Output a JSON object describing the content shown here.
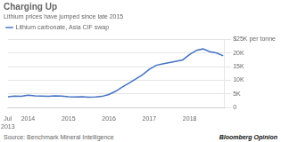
{
  "chart_data": {
    "type": "line",
    "title": "Charging Up",
    "subtitle": "Lithium prices have jumped since late 2015",
    "x": [
      2013.5,
      2013.67,
      2013.83,
      2014.0,
      2014.17,
      2014.33,
      2014.5,
      2014.67,
      2014.83,
      2015.0,
      2015.17,
      2015.33,
      2015.5,
      2015.67,
      2015.83,
      2016.0,
      2016.17,
      2016.33,
      2016.5,
      2016.67,
      2016.83,
      2017.0,
      2017.17,
      2017.33,
      2017.5,
      2017.67,
      2017.83,
      2018.0,
      2018.17,
      2018.33,
      2018.5,
      2018.67,
      2018.83
    ],
    "series": [
      {
        "name": "Lithium carbonate, Asia CIF swap",
        "color": "#4472C4",
        "values": [
          4000,
          4200,
          4100,
          4500,
          4300,
          4200,
          4100,
          4300,
          4200,
          4000,
          3900,
          4000,
          3800,
          3900,
          4100,
          4800,
          6000,
          7500,
          9000,
          10500,
          12000,
          14000,
          15500,
          16000,
          16500,
          17000,
          17500,
          19500,
          21000,
          21500,
          20500,
          20000,
          19000
        ]
      }
    ],
    "xlim": [
      2013.5,
      2018.85
    ],
    "xticks": [
      {
        "value": 2013.5,
        "label": "Jul\n2013"
      },
      2014,
      2015,
      2016,
      2017,
      2018
    ],
    "ylim": [
      0,
      25000
    ],
    "yticks": [
      0,
      {
        "value": 5000,
        "label": "5K"
      },
      {
        "value": 10000,
        "label": "10K"
      },
      {
        "value": 15000,
        "label": "15K"
      },
      {
        "value": 20000,
        "label": "20K"
      },
      {
        "value": 25000,
        "label": "$25K per tonne"
      }
    ],
    "grid": true,
    "legend": "upper left",
    "annotations": [
      "Source: Benchmark Mineral Intelligence",
      "Bloomberg Opinion"
    ]
  }
}
